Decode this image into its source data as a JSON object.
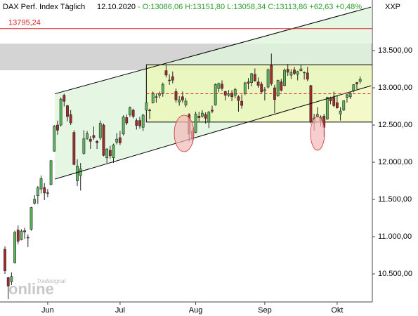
{
  "chart_data": {
    "type": "candlestick",
    "title": "DAX Perf. Index Täglich",
    "date": "12.10.2020",
    "quote": "- O:13086,06 H:13151,80 L:13058,34 C:13113,86 +62,63 +0,48%",
    "symbol": "XXP",
    "watermark": "online",
    "watermark_sub": "Tradesignal",
    "up_color": "#5cb85c",
    "down_color": "#a52a2a",
    "open": [
      10830,
      10450,
      10400,
      10650,
      11090,
      10960,
      11080,
      10990,
      11100,
      11450,
      11550,
      11640,
      11660,
      11590,
      11700,
      12150,
      12500,
      12500,
      12900,
      12760,
      12640,
      12400,
      11750,
      11820,
      12120,
      12320,
      12310,
      12360,
      12280,
      12330,
      12500,
      12060,
      12160,
      12060,
      12270,
      12330,
      12380,
      12600,
      12640,
      12700,
      12560,
      12560,
      12470,
      12700,
      12700,
      12800,
      12880,
      12900,
      12930,
      13230,
      13100,
      13150,
      12950,
      12810,
      12880,
      12770,
      12640,
      12420,
      12400,
      12620,
      12620,
      12640,
      12540,
      12700,
      12770,
      12990,
      13050,
      12950,
      12900,
      12930,
      12900,
      12880,
      12820,
      12920,
      13080,
      13070,
      13180,
      13080,
      13050,
      12960,
      13010,
      13300,
      13000,
      12890,
      13080,
      13030,
      13250,
      13170,
      13240,
      13180,
      13230,
      13200,
      13200,
      13030,
      12530,
      12620,
      12560,
      12620,
      12580,
      12860,
      12870,
      12800,
      12650,
      12700,
      12870,
      12880,
      12960,
      13070,
      13086.06
    ],
    "high": [
      10870,
      10460,
      10520,
      11080,
      11150,
      11100,
      11120,
      11030,
      11400,
      11560,
      11680,
      11820,
      11720,
      11640,
      12030,
      12500,
      12560,
      12870,
      12920,
      12770,
      12700,
      12430,
      12040,
      11990,
      12430,
      12420,
      12350,
      12480,
      12300,
      12560,
      12520,
      12190,
      12220,
      12250,
      12390,
      12420,
      12630,
      12640,
      12750,
      12720,
      12590,
      12610,
      12650,
      12900,
      12720,
      12950,
      12920,
      12950,
      13070,
      13310,
      13180,
      13220,
      12990,
      12890,
      12950,
      12860,
      12660,
      12460,
      12680,
      12680,
      12700,
      12670,
      12690,
      12760,
      13060,
      13070,
      13100,
      12960,
      12970,
      12970,
      13000,
      12900,
      12910,
      13080,
      13130,
      13200,
      13260,
      13140,
      13080,
      13010,
      13260,
      13460,
      13040,
      13110,
      13120,
      13260,
      13320,
      13250,
      13280,
      13230,
      13310,
      13220,
      13280,
      13040,
      12650,
      12740,
      12630,
      12650,
      12880,
      12880,
      12950,
      12900,
      12740,
      12830,
      12920,
      12940,
      13050,
      13080,
      13151.8
    ],
    "low": [
      10500,
      10160,
      10350,
      10640,
      10900,
      10950,
      10970,
      10860,
      11080,
      11430,
      11440,
      11580,
      11490,
      11530,
      11690,
      12140,
      12370,
      12480,
      12750,
      12550,
      12500,
      11960,
      11680,
      11620,
      12100,
      12300,
      12180,
      12300,
      12180,
      12300,
      12080,
      11990,
      12050,
      11990,
      12240,
      12230,
      12360,
      12500,
      12610,
      12590,
      12440,
      12450,
      12420,
      12690,
      12580,
      12790,
      12800,
      12860,
      12880,
      13140,
      13040,
      13060,
      12800,
      12760,
      12800,
      12740,
      12280,
      12250,
      12390,
      12550,
      12600,
      12520,
      12460,
      12660,
      12760,
      12940,
      12960,
      12830,
      12880,
      12820,
      12860,
      12680,
      12720,
      12900,
      12980,
      13020,
      13080,
      13000,
      12930,
      12830,
      12990,
      13030,
      12660,
      12880,
      12950,
      13020,
      13160,
      13120,
      13170,
      13100,
      13220,
      13110,
      13090,
      12520,
      12420,
      12600,
      12480,
      12340,
      12570,
      12780,
      12740,
      12720,
      12560,
      12690,
      12800,
      12850,
      12940,
      12980,
      13058.34
    ],
    "close": [
      10542,
      10337,
      10465,
      11058,
      10939,
      11075,
      11065,
      10982,
      11391,
      11504,
      11657,
      11781,
      11587,
      11587,
      12021,
      12487,
      12431,
      12848,
      12820,
      12614,
      12530,
      11970,
      11949,
      11911,
      12315,
      12382,
      12281,
      12331,
      12262,
      12523,
      12093,
      12178,
      12089,
      12232,
      12311,
      12260,
      12608,
      12528,
      12733,
      12616,
      12494,
      12489,
      12633,
      12800,
      12697,
      12930,
      12874,
      12920,
      13046,
      13171,
      13104,
      13103,
      12838,
      12838,
      12836,
      12822,
      12379,
      12313,
      12647,
      12600,
      12660,
      12591,
      12674,
      12687,
      13046,
      13058,
      12993,
      12901,
      12920,
      12881,
      12977,
      12830,
      12764,
      13066,
      13062,
      13190,
      13096,
      13033,
      12945,
      12974,
      13243,
      13057,
      12842,
      13100,
      12968,
      13237,
      13209,
      13202,
      13194,
      13218,
      13255,
      13208,
      13116,
      12542,
      12594,
      12643,
      12606,
      12469,
      12871,
      12826,
      12761,
      12731,
      12689,
      12828,
      12906,
      12928,
      13042,
      13051,
      13113.86
    ],
    "xlim": [
      -1.5,
      111.7
    ],
    "ylim": [
      10123,
      14180
    ],
    "xticks": [
      {
        "value": 13,
        "label": "Jun"
      },
      {
        "value": 35,
        "label": "Jul"
      },
      {
        "value": 58,
        "label": "Aug"
      },
      {
        "value": 79,
        "label": "Sep"
      },
      {
        "value": 101,
        "label": "Okt"
      }
    ],
    "yticks": [
      {
        "value": 10500,
        "label": "10.500,00"
      },
      {
        "value": 11000,
        "label": "11.000,00"
      },
      {
        "value": 11500,
        "label": "11.500,00"
      },
      {
        "value": 12000,
        "label": "12.000,00"
      },
      {
        "value": 12500,
        "label": "12.500,00"
      },
      {
        "value": 13000,
        "label": "13.000,00"
      },
      {
        "value": 13500,
        "label": "13.500,00"
      }
    ],
    "level": {
      "value": 13795.24,
      "label": "13795,24"
    },
    "resistance_zone": [
      13236,
      13594
    ],
    "range_box": {
      "x": [
        43,
        111.7
      ],
      "y": [
        12540,
        13310
      ]
    },
    "mid_line": 12920,
    "channel": {
      "x": [
        15.2,
        111.3
      ],
      "upper": [
        12920,
        14085
      ],
      "lower": [
        11774,
        13028
      ]
    }
  }
}
